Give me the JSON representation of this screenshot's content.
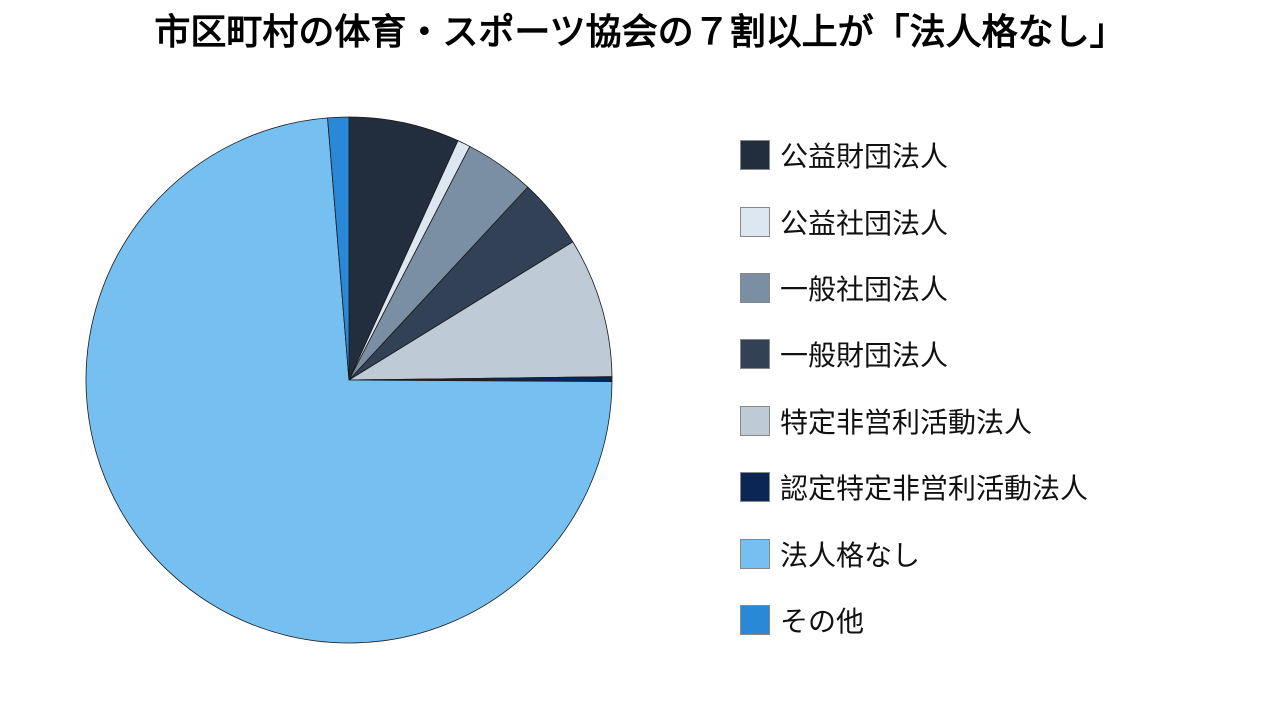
{
  "chart_data": {
    "type": "pie",
    "title": "市区町村の体育・スポーツ協会の７割以上が「法人格なし」",
    "slices": [
      {
        "label": "公益財団法人",
        "value": 6.8,
        "color": "#222d3e"
      },
      {
        "label": "公益社団法人",
        "value": 0.8,
        "color": "#dce7f1"
      },
      {
        "label": "一般社団法人",
        "value": 4.3,
        "color": "#7b8fa4"
      },
      {
        "label": "一般財団法人",
        "value": 4.3,
        "color": "#334157"
      },
      {
        "label": "特定非営利活動法人",
        "value": 8.6,
        "color": "#becbd6"
      },
      {
        "label": "認定特定非営利活動法人",
        "value": 0.3,
        "color": "#0b2554"
      },
      {
        "label": "法人格なし",
        "value": 73.6,
        "color": "#75c0f1"
      },
      {
        "label": "その他",
        "value": 1.3,
        "color": "#2a88d8"
      }
    ],
    "start_angle_deg": 0,
    "direction": "clockwise",
    "legend_position": "right"
  }
}
